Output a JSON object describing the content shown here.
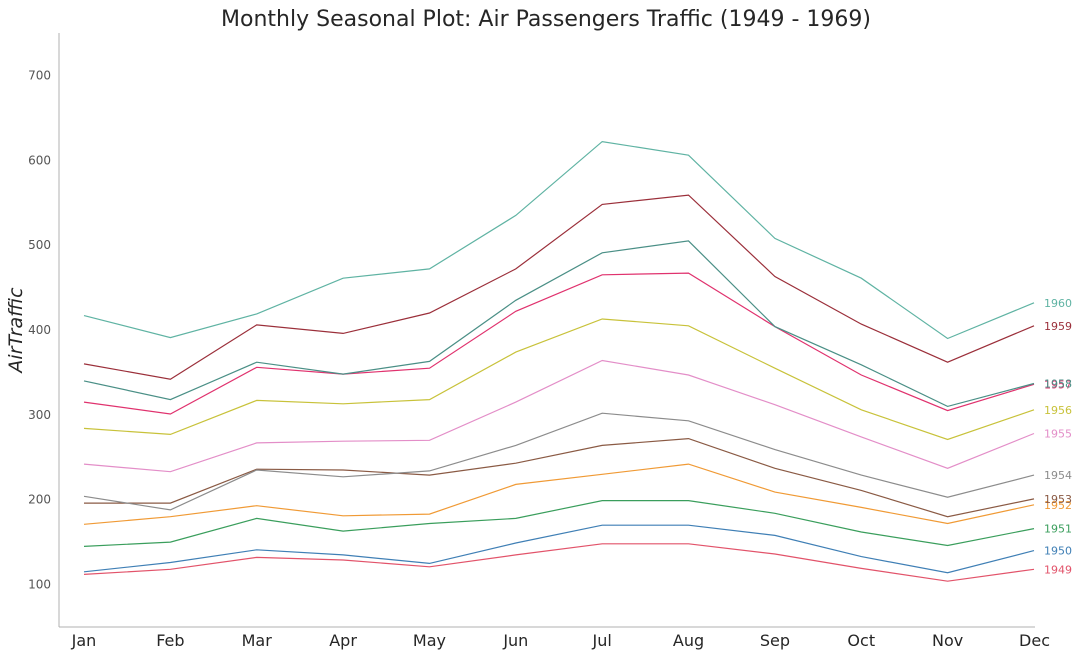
{
  "chart_data": {
    "type": "line",
    "title": "Monthly Seasonal Plot: Air Passengers Traffic (1949 - 1969)",
    "xlabel": "",
    "ylabel": "AirTraffic",
    "categories": [
      "Jan",
      "Feb",
      "Mar",
      "Apr",
      "May",
      "Jun",
      "Jul",
      "Aug",
      "Sep",
      "Oct",
      "Nov",
      "Dec"
    ],
    "yticks": [
      "100",
      "200",
      "300",
      "400",
      "500",
      "600",
      "700"
    ],
    "ylim": [
      50,
      750
    ],
    "grid": false,
    "legend": "none",
    "series": [
      {
        "name": "1949",
        "color": "#e2536a",
        "values": [
          112,
          118,
          132,
          129,
          121,
          135,
          148,
          148,
          136,
          119,
          104,
          118
        ]
      },
      {
        "name": "1950",
        "color": "#3f7fb5",
        "values": [
          115,
          126,
          141,
          135,
          125,
          149,
          170,
          170,
          158,
          133,
          114,
          140
        ]
      },
      {
        "name": "1951",
        "color": "#3a9e5c",
        "values": [
          145,
          150,
          178,
          163,
          172,
          178,
          199,
          199,
          184,
          162,
          146,
          166
        ]
      },
      {
        "name": "1952",
        "color": "#f09a35",
        "values": [
          171,
          180,
          193,
          181,
          183,
          218,
          230,
          242,
          209,
          191,
          172,
          194
        ]
      },
      {
        "name": "1953",
        "color": "#8a5a44",
        "values": [
          196,
          196,
          236,
          235,
          229,
          243,
          264,
          272,
          237,
          211,
          180,
          201
        ]
      },
      {
        "name": "1954",
        "color": "#8c8c8c",
        "values": [
          204,
          188,
          235,
          227,
          234,
          264,
          302,
          293,
          259,
          229,
          203,
          229
        ]
      },
      {
        "name": "1955",
        "color": "#e38ec8",
        "values": [
          242,
          233,
          267,
          269,
          270,
          315,
          364,
          347,
          312,
          274,
          237,
          278
        ]
      },
      {
        "name": "1956",
        "color": "#c8c23a",
        "values": [
          284,
          277,
          317,
          313,
          318,
          374,
          413,
          405,
          355,
          306,
          271,
          306
        ]
      },
      {
        "name": "1957",
        "color": "#e0326e",
        "values": [
          315,
          301,
          356,
          348,
          355,
          422,
          465,
          467,
          404,
          347,
          305,
          336
        ]
      },
      {
        "name": "1958",
        "color": "#4a8f86",
        "values": [
          340,
          318,
          362,
          348,
          363,
          435,
          491,
          505,
          404,
          359,
          310,
          337
        ]
      },
      {
        "name": "1959",
        "color": "#9b2f3a",
        "values": [
          360,
          342,
          406,
          396,
          420,
          472,
          548,
          559,
          463,
          407,
          362,
          405
        ]
      },
      {
        "name": "1960",
        "color": "#5fb3a3",
        "values": [
          417,
          391,
          419,
          461,
          472,
          535,
          622,
          606,
          508,
          461,
          390,
          432
        ]
      }
    ]
  }
}
